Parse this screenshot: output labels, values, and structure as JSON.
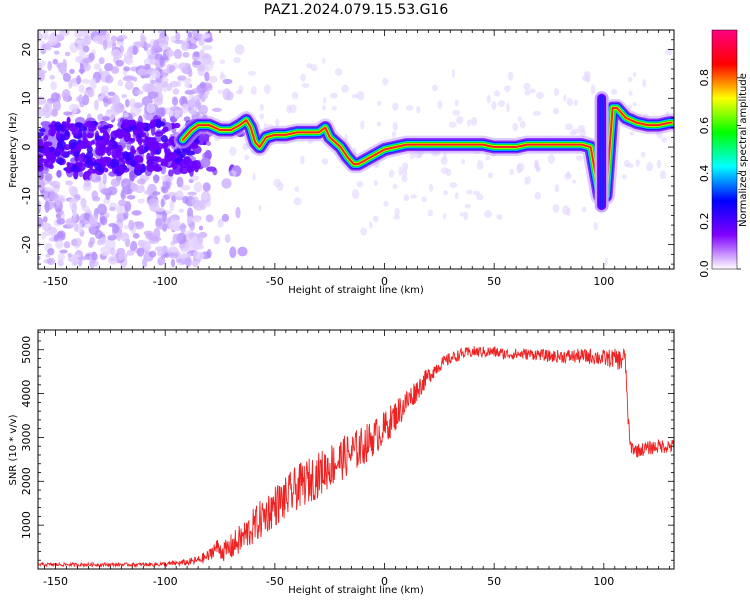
{
  "title": "PAZ1.2024.079.15.53.G16",
  "chart_data": [
    {
      "type": "heatmap",
      "xlabel": "Height of straight line (km)",
      "ylabel": "Frequency (Hz)",
      "xlim": [
        -158,
        132
      ],
      "ylim": [
        -25,
        24
      ],
      "xticks": [
        -150,
        -100,
        -50,
        0,
        50,
        100
      ],
      "yticks": [
        -20,
        -10,
        0,
        10,
        20
      ],
      "colorbar": {
        "label": "Normalized spectral amplitude",
        "range": [
          0,
          1
        ],
        "ticks": [
          0.0,
          0.2,
          0.4,
          0.6,
          0.8
        ],
        "colormap": [
          "#ffffff",
          "#8000ff",
          "#0000ff",
          "#00ffff",
          "#00ff00",
          "#ffff00",
          "#ff0000",
          "#ff0080"
        ]
      },
      "ridge": {
        "x": [
          -95,
          -88,
          -85,
          -80,
          -75,
          -70,
          -66,
          -63,
          -61,
          -59,
          -57,
          -54,
          -50,
          -45,
          -40,
          -35,
          -30,
          -27,
          -25,
          -20,
          -17,
          -14,
          -12,
          -8,
          -4,
          0,
          5,
          10,
          15,
          20,
          30,
          40,
          45,
          50,
          55,
          60,
          65,
          70,
          75,
          80,
          85,
          90,
          94,
          96,
          98,
          101,
          104,
          106,
          110,
          115,
          120,
          125,
          130
        ],
        "y": [
          0,
          3.5,
          4.5,
          4.5,
          3.5,
          3.5,
          4.5,
          5.5,
          4,
          1,
          0,
          2,
          2.5,
          2.5,
          3,
          3,
          3,
          4,
          2,
          0,
          -2,
          -3.5,
          -3.5,
          -2.5,
          -1.5,
          -0.5,
          0,
          0.5,
          0.5,
          0.5,
          0.5,
          0.5,
          0.5,
          0,
          0,
          0,
          0.5,
          0.5,
          0.5,
          0.5,
          0.5,
          0.5,
          0,
          -5,
          -10,
          -10,
          8,
          8,
          6,
          5,
          4.5,
          4.5,
          5
        ]
      }
    },
    {
      "type": "line",
      "xlabel": "Height of straight line (km)",
      "ylabel": "SNR (10 * v/v)",
      "xlim": [
        -158,
        132
      ],
      "ylim": [
        0,
        5450
      ],
      "xticks": [
        -150,
        -100,
        -50,
        0,
        50,
        100
      ],
      "yticks": [
        1000,
        2000,
        3000,
        4000,
        5000
      ],
      "color": "#ee2222",
      "series": [
        {
          "x": [
            -158,
            -150,
            -140,
            -130,
            -120,
            -110,
            -100,
            -95,
            -90,
            -85,
            -80,
            -78,
            -76,
            -74,
            -72,
            -70,
            -65,
            -60,
            -55,
            -50,
            -45,
            -40,
            -35,
            -30,
            -25,
            -20,
            -15,
            -10,
            -5,
            0,
            5,
            10,
            15,
            20,
            25,
            30,
            35,
            40,
            45,
            50,
            55,
            60,
            65,
            70,
            75,
            80,
            85,
            90,
            95,
            100,
            105,
            108,
            109,
            110,
            111,
            112,
            115,
            120,
            125,
            132
          ],
          "y": [
            100,
            100,
            100,
            100,
            100,
            100,
            110,
            130,
            150,
            200,
            300,
            450,
            500,
            400,
            420,
            500,
            700,
            950,
            1200,
            1450,
            1600,
            1850,
            2000,
            2150,
            2350,
            2500,
            2650,
            2800,
            3000,
            3200,
            3500,
            3800,
            4100,
            4400,
            4650,
            4800,
            4900,
            4950,
            4950,
            4950,
            4900,
            4900,
            4900,
            4900,
            4850,
            4850,
            4850,
            4850,
            4850,
            4800,
            4800,
            4750,
            4900,
            4600,
            3500,
            2800,
            2700,
            2750,
            2800,
            2800
          ],
          "noise": [
            40,
            40,
            40,
            40,
            40,
            40,
            50,
            60,
            80,
            100,
            150,
            180,
            200,
            220,
            260,
            300,
            360,
            420,
            460,
            480,
            500,
            520,
            520,
            520,
            520,
            500,
            480,
            460,
            420,
            400,
            360,
            320,
            260,
            200,
            160,
            140,
            130,
            130,
            130,
            130,
            130,
            130,
            130,
            130,
            140,
            150,
            160,
            170,
            190,
            200,
            220,
            260,
            300,
            260,
            200,
            160,
            160,
            160,
            160,
            160
          ]
        }
      ]
    }
  ]
}
